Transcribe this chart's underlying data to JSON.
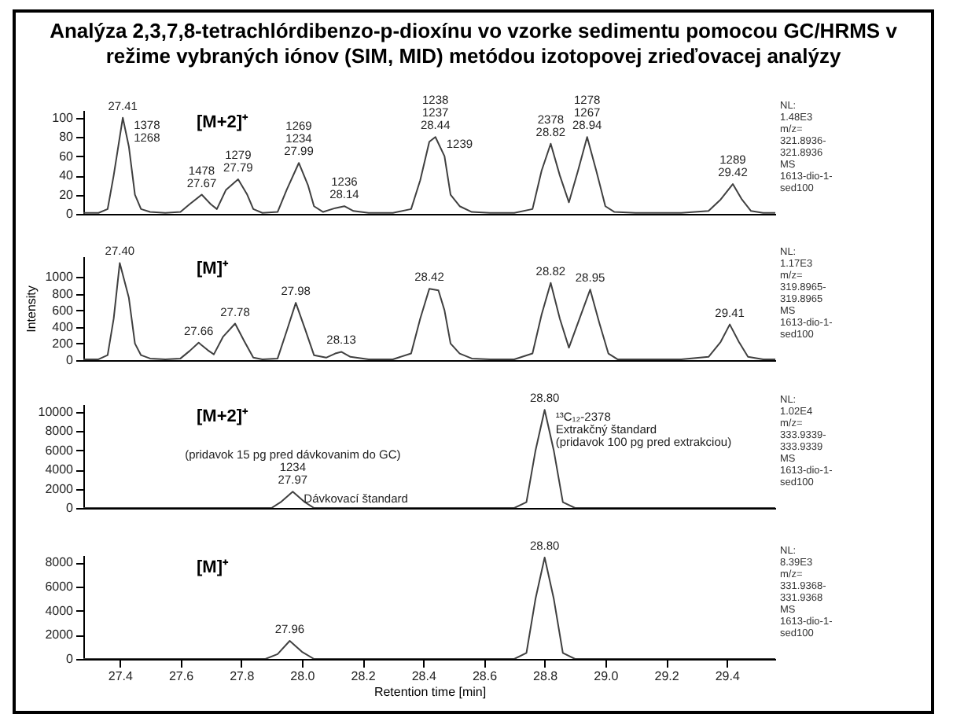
{
  "chart_data": [
    {
      "type": "line",
      "title": "Analýza 2,3,7,8-tetrachlórdibenzo-p-dioxínu vo vzorke sedimentu pomocou GC/HRMS v režime vybraných iónov (SIM, MID) metódou izotopovej zrieďovacej analýzy",
      "xlim": [
        27.28,
        29.56
      ],
      "ylim": [
        0,
        108
      ],
      "yticks": [
        0,
        20,
        40,
        60,
        80,
        100
      ],
      "tick_labels": "y",
      "series": [
        {
          "color": "#404040",
          "x": [
            27.28,
            27.33,
            27.36,
            27.38,
            27.41,
            27.43,
            27.45,
            27.47,
            27.5,
            27.55,
            27.6,
            27.63,
            27.67,
            27.7,
            27.72,
            27.75,
            27.79,
            27.82,
            27.84,
            27.87,
            27.92,
            27.95,
            27.99,
            28.02,
            28.04,
            28.07,
            28.11,
            28.14,
            28.17,
            28.22,
            28.3,
            28.36,
            28.39,
            28.42,
            28.44,
            28.47,
            28.49,
            28.52,
            28.56,
            28.62,
            28.7,
            28.76,
            28.79,
            28.82,
            28.85,
            28.88,
            28.91,
            28.94,
            28.97,
            29,
            29.03,
            29.1,
            29.25,
            29.34,
            29.38,
            29.42,
            29.45,
            29.48,
            29.52,
            29.56
          ],
          "values": [
            1,
            1,
            5,
            40,
            100,
            70,
            20,
            5,
            2,
            1,
            2,
            10,
            20,
            10,
            5,
            25,
            36,
            20,
            5,
            1,
            2,
            25,
            53,
            30,
            8,
            2,
            6,
            8,
            3,
            1,
            1,
            5,
            35,
            75,
            80,
            60,
            20,
            8,
            2,
            1,
            1,
            5,
            45,
            73,
            40,
            12,
            45,
            80,
            45,
            8,
            2,
            1,
            1,
            3,
            15,
            31,
            15,
            3,
            1,
            1
          ]
        }
      ],
      "annotations": [
        "[M+2]⁺",
        "NL:",
        "1.48E3",
        "m/z=",
        "321.8936-",
        "321.8936",
        "MS",
        "1613-dio-1-",
        "sed100",
        {
          "text": "27.41",
          "x": 27.41,
          "y": 100
        },
        {
          "text": "1378",
          "x": 27.41,
          "y": 100
        },
        {
          "text": "1268",
          "x": 27.41,
          "y": 100
        },
        {
          "text": "27.67",
          "x": 27.67,
          "y": 20
        },
        {
          "text": "1478",
          "x": 27.67,
          "y": 20
        },
        {
          "text": "27.79",
          "x": 27.79,
          "y": 36
        },
        {
          "text": "1279",
          "x": 27.79,
          "y": 36
        },
        {
          "text": "27.99",
          "x": 27.99,
          "y": 53
        },
        {
          "text": "1234",
          "x": 27.99,
          "y": 53
        },
        {
          "text": "1269",
          "x": 27.99,
          "y": 53
        },
        {
          "text": "28.14",
          "x": 28.14,
          "y": 8
        },
        {
          "text": "1236",
          "x": 28.14,
          "y": 8
        },
        {
          "text": "28.44",
          "x": 28.44,
          "y": 80
        },
        {
          "text": "1237",
          "x": 28.44,
          "y": 80
        },
        {
          "text": "1238",
          "x": 28.44,
          "y": 80
        },
        {
          "text": "1239",
          "x": 28.44,
          "y": 80
        },
        {
          "text": "28.82",
          "x": 28.82,
          "y": 73
        },
        {
          "text": "2378",
          "x": 28.82,
          "y": 73
        },
        {
          "text": "28.94",
          "x": 28.94,
          "y": 80
        },
        {
          "text": "1267",
          "x": 28.94,
          "y": 80
        },
        {
          "text": "1278",
          "x": 28.94,
          "y": 80
        },
        {
          "text": "29.42",
          "x": 29.42,
          "y": 31
        },
        {
          "text": "1289",
          "x": 29.42,
          "y": 31
        }
      ]
    },
    {
      "type": "line",
      "ylabel": "Intensity",
      "xlim": [
        27.28,
        29.56
      ],
      "ylim": [
        0,
        1250
      ],
      "yticks": [
        0,
        200,
        400,
        600,
        800,
        1000
      ],
      "tick_labels": "y",
      "series": [
        {
          "color": "#404040",
          "x": [
            27.28,
            27.33,
            27.36,
            27.38,
            27.4,
            27.43,
            27.45,
            27.47,
            27.5,
            27.55,
            27.6,
            27.63,
            27.66,
            27.69,
            27.71,
            27.74,
            27.78,
            27.81,
            27.84,
            27.87,
            27.92,
            27.95,
            27.98,
            28.01,
            28.04,
            28.08,
            28.11,
            28.13,
            28.16,
            28.22,
            28.3,
            28.36,
            28.39,
            28.42,
            28.45,
            28.47,
            28.49,
            28.52,
            28.56,
            28.62,
            28.7,
            28.76,
            28.79,
            28.82,
            28.85,
            28.88,
            28.92,
            28.95,
            28.98,
            29.01,
            29.04,
            29.1,
            29.25,
            29.34,
            29.38,
            29.41,
            29.44,
            29.47,
            29.52,
            29.56
          ],
          "values": [
            10,
            10,
            60,
            500,
            1170,
            750,
            200,
            60,
            20,
            10,
            20,
            110,
            210,
            120,
            70,
            280,
            440,
            230,
            30,
            10,
            20,
            350,
            690,
            380,
            60,
            30,
            80,
            100,
            40,
            10,
            10,
            80,
            500,
            860,
            840,
            600,
            200,
            80,
            20,
            10,
            10,
            80,
            550,
            930,
            500,
            150,
            550,
            850,
            450,
            80,
            10,
            10,
            10,
            40,
            220,
            430,
            220,
            40,
            10,
            10
          ]
        }
      ],
      "annotations": [
        "[M]⁺",
        "NL:",
        "1.17E3",
        "m/z=",
        "319.8965-",
        "319.8965",
        "MS",
        "1613-dio-1-",
        "sed100",
        {
          "text": "27.40",
          "x": 27.4,
          "y": 1170
        },
        {
          "text": "27.66",
          "x": 27.66,
          "y": 210
        },
        {
          "text": "27.78",
          "x": 27.78,
          "y": 440
        },
        {
          "text": "27.98",
          "x": 27.98,
          "y": 690
        },
        {
          "text": "28.13",
          "x": 28.13,
          "y": 100
        },
        {
          "text": "28.42",
          "x": 28.42,
          "y": 860
        },
        {
          "text": "28.82",
          "x": 28.82,
          "y": 930
        },
        {
          "text": "28.95",
          "x": 28.95,
          "y": 850
        },
        {
          "text": "29.41",
          "x": 29.41,
          "y": 430
        }
      ]
    },
    {
      "type": "line",
      "xlim": [
        27.28,
        29.56
      ],
      "ylim": [
        0,
        10800
      ],
      "yticks": [
        0,
        2000,
        4000,
        6000,
        8000,
        10000
      ],
      "tick_labels": "y",
      "series": [
        {
          "color": "#404040",
          "x": [
            27.28,
            27.9,
            27.93,
            27.97,
            28.01,
            28.04,
            28.7,
            28.74,
            28.77,
            28.8,
            28.83,
            28.86,
            28.9,
            29.56
          ],
          "values": [
            0,
            0,
            600,
            1700,
            600,
            0,
            0,
            600,
            6000,
            10200,
            6000,
            600,
            0,
            0
          ]
        }
      ],
      "annotations": [
        "[M+2]⁺",
        "NL:",
        "1.02E4",
        "m/z=",
        "333.9339-",
        "333.9339",
        "MS",
        "1613-dio-1-",
        "sed100",
        {
          "text": "27.97",
          "x": 27.97,
          "y": 1700
        },
        {
          "text": "1234",
          "x": 27.97,
          "y": 1700
        },
        {
          "text": "(pridavok 15 pg pred dávkovanim do GC)",
          "x": 27.97,
          "y": 1700
        },
        {
          "text": "Dávkovací štandard",
          "x": 27.97,
          "y": 1700
        },
        {
          "text": "28.80",
          "x": 28.8,
          "y": 10200
        },
        {
          "text": "¹³C₁₂-2378",
          "x": 28.8,
          "y": 10200
        },
        {
          "text": "Extrakčný štandard",
          "x": 28.8,
          "y": 10200
        },
        {
          "text": "(pridavok 100 pg pred extrakciou)",
          "x": 28.8,
          "y": 10200
        }
      ]
    },
    {
      "type": "line",
      "xlabel": "Retention time [min]",
      "xlim": [
        27.28,
        29.56
      ],
      "ylim": [
        0,
        8600
      ],
      "yticks": [
        0,
        2000,
        4000,
        6000,
        8000
      ],
      "xticks": [
        27.4,
        27.6,
        27.8,
        {
          "value": 28,
          "label": "28.0"
        },
        28.2,
        28.4,
        28.6,
        28.8,
        {
          "value": 29,
          "label": "29.0"
        },
        29.2,
        29.4
      ],
      "series": [
        {
          "color": "#404040",
          "x": [
            27.28,
            27.88,
            27.92,
            27.96,
            28,
            28.04,
            28.7,
            28.74,
            28.77,
            28.8,
            28.83,
            28.86,
            28.9,
            29.56
          ],
          "values": [
            0,
            0,
            400,
            1500,
            600,
            0,
            0,
            500,
            5000,
            8400,
            5000,
            500,
            0,
            0
          ]
        }
      ],
      "annotations": [
        "[M]⁺",
        "NL:",
        "8.39E3",
        "m/z=",
        "331.9368-",
        "331.9368",
        "MS",
        "1613-dio-1-",
        "sed100",
        {
          "text": "27.96",
          "x": 27.96,
          "y": 1500
        },
        {
          "text": "28.80",
          "x": 28.8,
          "y": 8400
        }
      ]
    }
  ]
}
